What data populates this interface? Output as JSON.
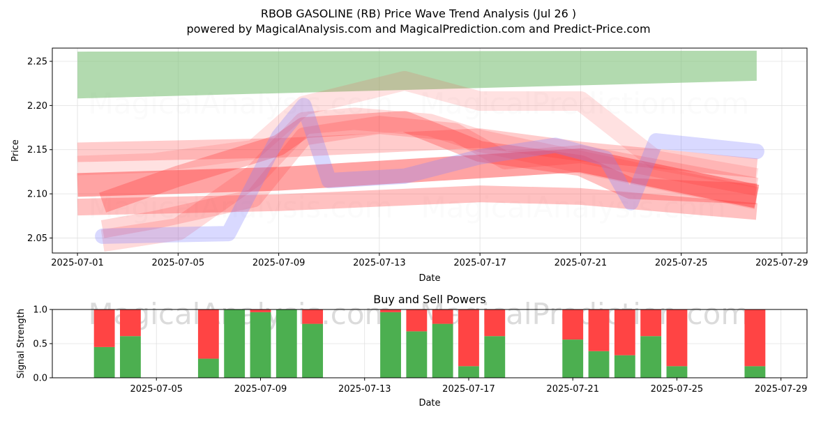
{
  "header": {
    "title": "RBOB GASOLINE (RB) Price Wave Trend Analysis (Jul 26 )",
    "subtitle": "powered by MagicalAnalysis.com and MagicalPrediction.com and Predict-Price.com"
  },
  "watermarks": [
    "MagicalAnalysis.com",
    "MagicalPrediction.com"
  ],
  "colors": {
    "green_band": "#7fc17a",
    "red_band": "#ff3333",
    "blue_band": "#8080ff",
    "buy": "#4caf50",
    "sell": "#ff4444",
    "grid": "#e0e0e0"
  },
  "chart_data": [
    {
      "type": "area",
      "title": "",
      "xlabel": "Date",
      "ylabel": "Price",
      "x_ticks": [
        "2025-07-01",
        "2025-07-05",
        "2025-07-09",
        "2025-07-13",
        "2025-07-17",
        "2025-07-21",
        "2025-07-25",
        "2025-07-29"
      ],
      "y_ticks": [
        "2.05",
        "2.10",
        "2.15",
        "2.20",
        "2.25"
      ],
      "xlim": [
        "2025-06-30",
        "2025-07-30"
      ],
      "ylim": [
        2.033,
        2.265
      ],
      "grid": true,
      "series": [
        {
          "color": "green",
          "x": [
            "2025-07-01",
            "2025-07-28"
          ],
          "lower": [
            2.208,
            2.228
          ],
          "upper": [
            2.261,
            2.262
          ]
        },
        {
          "color": "red",
          "x": [
            "2025-07-01",
            "2025-07-09",
            "2025-07-17",
            "2025-07-21",
            "2025-07-28"
          ],
          "y": [
            2.11,
            2.117,
            2.131,
            2.138,
            2.097
          ]
        },
        {
          "color": "red",
          "x": [
            "2025-07-01",
            "2025-07-09",
            "2025-07-17",
            "2025-07-21",
            "2025-07-28"
          ],
          "y": [
            2.147,
            2.152,
            2.163,
            2.148,
            2.129
          ]
        },
        {
          "color": "red",
          "x": [
            "2025-07-01",
            "2025-07-09",
            "2025-07-17",
            "2025-07-21",
            "2025-07-28"
          ],
          "y": [
            2.085,
            2.09,
            2.1,
            2.097,
            2.08
          ]
        },
        {
          "color": "red",
          "x": [
            "2025-07-02",
            "2025-07-05",
            "2025-07-09",
            "2025-07-10",
            "2025-07-14",
            "2025-07-17",
            "2025-07-21",
            "2025-07-23",
            "2025-07-28"
          ],
          "y": [
            2.09,
            2.12,
            2.155,
            2.175,
            2.182,
            2.148,
            2.132,
            2.106,
            2.1
          ]
        },
        {
          "color": "red",
          "x": [
            "2025-07-02",
            "2025-07-04",
            "2025-07-08",
            "2025-07-10",
            "2025-07-13",
            "2025-07-16",
            "2025-07-18",
            "2025-07-21",
            "2025-07-28"
          ],
          "y": [
            2.06,
            2.07,
            2.095,
            2.165,
            2.178,
            2.17,
            2.138,
            2.145,
            2.108
          ]
        },
        {
          "color": "red",
          "x": [
            "2025-07-02",
            "2025-07-05",
            "2025-07-08",
            "2025-07-10",
            "2025-07-12",
            "2025-07-15",
            "2025-07-17",
            "2025-07-22",
            "2025-07-28"
          ],
          "y": [
            2.047,
            2.06,
            2.12,
            2.18,
            2.185,
            2.178,
            2.16,
            2.13,
            2.095
          ]
        },
        {
          "color": "red",
          "x": [
            "2025-07-01",
            "2025-07-04",
            "2025-07-08",
            "2025-07-10",
            "2025-07-14",
            "2025-07-17",
            "2025-07-21",
            "2025-07-24",
            "2025-07-28"
          ],
          "y": [
            2.132,
            2.135,
            2.15,
            2.2,
            2.228,
            2.205,
            2.205,
            2.138,
            2.118
          ]
        },
        {
          "color": "blue",
          "x": [
            "2025-07-02",
            "2025-07-07",
            "2025-07-09",
            "2025-07-10",
            "2025-07-11",
            "2025-07-14",
            "2025-07-17",
            "2025-07-20",
            "2025-07-22",
            "2025-07-23",
            "2025-07-24",
            "2025-07-28"
          ],
          "y": [
            2.052,
            2.055,
            2.165,
            2.2,
            2.115,
            2.12,
            2.142,
            2.155,
            2.14,
            2.09,
            2.16,
            2.148
          ]
        }
      ]
    },
    {
      "type": "bar",
      "stacked": true,
      "title": "Buy and Sell Powers",
      "xlabel": "Date",
      "ylabel": "Signal Strength",
      "x_ticks": [
        "2025-07-05",
        "2025-07-09",
        "2025-07-13",
        "2025-07-17",
        "2025-07-21",
        "2025-07-25",
        "2025-07-29"
      ],
      "y_ticks": [
        "0.0",
        "0.5",
        "1.0"
      ],
      "xlim": [
        "2025-07-01",
        "2025-07-30"
      ],
      "ylim": [
        0,
        1
      ],
      "grid": true,
      "categories": [
        "2025-07-03",
        "2025-07-04",
        "2025-07-07",
        "2025-07-08",
        "2025-07-09",
        "2025-07-10",
        "2025-07-11",
        "2025-07-14",
        "2025-07-15",
        "2025-07-16",
        "2025-07-17",
        "2025-07-18",
        "2025-07-21",
        "2025-07-22",
        "2025-07-23",
        "2025-07-24",
        "2025-07-25",
        "2025-07-28"
      ],
      "series": [
        {
          "color": "buy",
          "values": [
            0.45,
            0.61,
            0.28,
            1.0,
            0.96,
            1.0,
            0.79,
            0.96,
            0.68,
            0.79,
            0.17,
            0.61,
            0.56,
            0.39,
            0.33,
            0.61,
            0.17,
            0.17
          ]
        },
        {
          "color": "sell",
          "values": [
            0.55,
            0.39,
            0.72,
            0.0,
            0.04,
            0.0,
            0.21,
            0.04,
            0.32,
            0.21,
            0.83,
            0.39,
            0.44,
            0.61,
            0.67,
            0.39,
            0.83,
            0.83
          ]
        }
      ]
    }
  ]
}
